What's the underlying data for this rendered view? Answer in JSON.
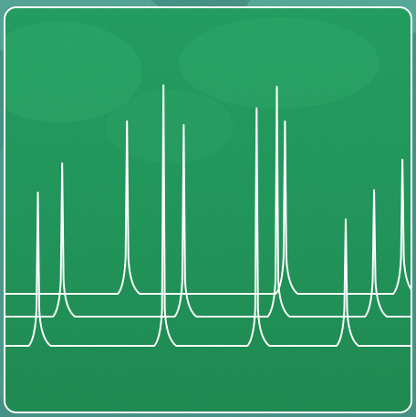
{
  "image": {
    "icon": "chromatogram-traces-icon",
    "colors": {
      "outer_background": "#3a8f80",
      "tile_top": "#1a9a5a",
      "tile_bottom": "#16864a",
      "tile_border": "#ffffff",
      "trace_color": "#ffffff"
    },
    "traces": [
      {
        "peaks": [
          {
            "at": 0.3,
            "height": 0.45
          },
          {
            "at": 0.69,
            "height": 0.45
          },
          {
            "at": 0.98,
            "height": 0.35
          }
        ]
      },
      {
        "peaks": [
          {
            "at": 0.14,
            "height": 0.4
          },
          {
            "at": 0.44,
            "height": 0.5
          },
          {
            "at": 0.67,
            "height": 0.6
          },
          {
            "at": 0.91,
            "height": 0.33
          }
        ]
      },
      {
        "peaks": [
          {
            "at": 0.08,
            "height": 0.4
          },
          {
            "at": 0.39,
            "height": 0.68
          },
          {
            "at": 0.62,
            "height": 0.62
          },
          {
            "at": 0.84,
            "height": 0.33
          }
        ]
      }
    ]
  }
}
